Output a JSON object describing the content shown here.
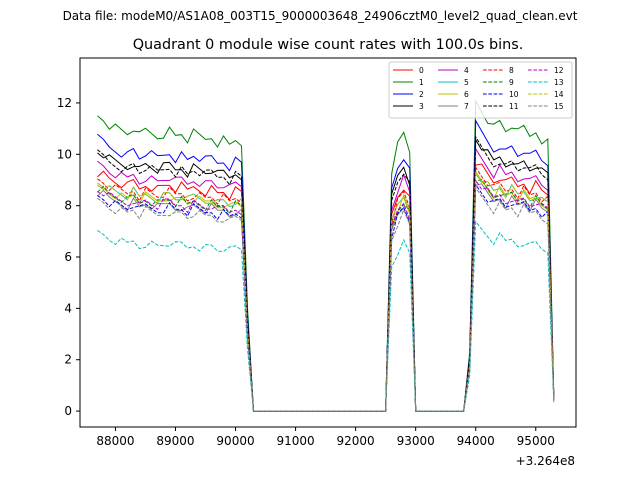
{
  "suptitle": "Data file: modeM0/AS1A08_003T15_9000003648_24906cztM0_level2_quad_clean.evt",
  "chart_data": {
    "type": "line",
    "title": "Quadrant 0 module wise count rates with 100.0s bins.",
    "xlabel": "",
    "ylabel": "",
    "x_offset_label": "+3.264e8",
    "xlim": [
      87410,
      95670
    ],
    "ylim": [
      -0.62,
      13.75
    ],
    "xticks": [
      88000,
      89000,
      90000,
      91000,
      92000,
      93000,
      94000,
      95000
    ],
    "yticks": [
      0,
      2,
      4,
      6,
      8,
      10,
      12
    ],
    "legend_position": "top-right",
    "shape_x": [
      87700,
      87800,
      87900,
      88000,
      88100,
      88200,
      88300,
      88400,
      88500,
      88600,
      88700,
      88800,
      88900,
      89000,
      89100,
      89200,
      89300,
      89400,
      89500,
      89600,
      89700,
      89800,
      89900,
      90000,
      90100,
      90200,
      90300,
      90400,
      92500,
      92600,
      92700,
      92800,
      92900,
      93000,
      93800,
      93900,
      94000,
      94100,
      94200,
      94300,
      94400,
      94500,
      94600,
      94700,
      94800,
      94900,
      95000,
      95100,
      95200,
      95300
    ],
    "shape": [
      1.0,
      0.99,
      0.97,
      0.96,
      0.95,
      0.94,
      0.96,
      0.93,
      0.95,
      0.94,
      0.93,
      0.94,
      0.95,
      0.93,
      0.94,
      0.92,
      0.94,
      0.93,
      0.92,
      0.93,
      0.91,
      0.92,
      0.9,
      0.92,
      0.91,
      0.35,
      0.0,
      0.0,
      0.0,
      0.82,
      0.9,
      0.94,
      0.88,
      0.0,
      0.0,
      0.2,
      1.05,
      1.02,
      0.99,
      0.96,
      0.98,
      0.95,
      0.97,
      0.94,
      0.96,
      0.93,
      0.95,
      0.92,
      0.91,
      0.05
    ],
    "series": [
      {
        "name": "0",
        "color": "#ff0000",
        "dash": "solid",
        "base": 9.3
      },
      {
        "name": "1",
        "color": "#008000",
        "dash": "solid",
        "base": 11.5
      },
      {
        "name": "2",
        "color": "#0000ff",
        "dash": "solid",
        "base": 10.6
      },
      {
        "name": "3",
        "color": "#000000",
        "dash": "solid",
        "base": 10.1
      },
      {
        "name": "4",
        "color": "#bf00bf",
        "dash": "solid",
        "base": 9.6
      },
      {
        "name": "5",
        "color": "#00bfbf",
        "dash": "solid",
        "base": 8.9
      },
      {
        "name": "6",
        "color": "#bfbf00",
        "dash": "solid",
        "base": 8.8
      },
      {
        "name": "7",
        "color": "#808080",
        "dash": "solid",
        "base": 8.5
      },
      {
        "name": "8",
        "color": "#ff0000",
        "dash": "dashed",
        "base": 9.0
      },
      {
        "name": "9",
        "color": "#008000",
        "dash": "dashed",
        "base": 8.7
      },
      {
        "name": "10",
        "color": "#0000ff",
        "dash": "dashed",
        "base": 8.4
      },
      {
        "name": "11",
        "color": "#000000",
        "dash": "dashed",
        "base": 10.0
      },
      {
        "name": "12",
        "color": "#bf00bf",
        "dash": "dashed",
        "base": 8.6
      },
      {
        "name": "13",
        "color": "#00bfbf",
        "dash": "dashed",
        "base": 6.9
      },
      {
        "name": "14",
        "color": "#bfbf00",
        "dash": "dashed",
        "base": 8.9
      },
      {
        "name": "15",
        "color": "#808080",
        "dash": "dashed",
        "base": 8.2
      }
    ]
  }
}
